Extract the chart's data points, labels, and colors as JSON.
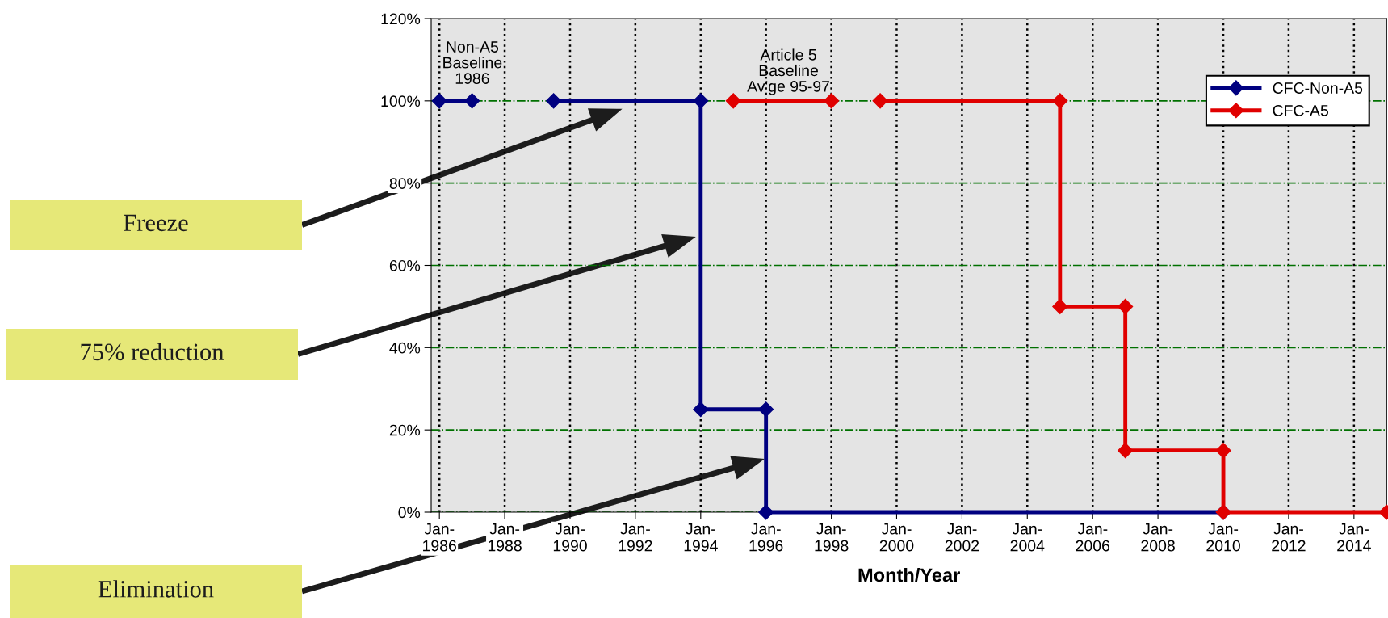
{
  "chart_data": {
    "type": "line",
    "xlabel": "Month/Year",
    "xlim": [
      "1985-10",
      "2015-01"
    ],
    "ylim": [
      0,
      120
    ],
    "xticks": [
      {
        "value": "1986-01",
        "label": "Jan-\n1986"
      },
      {
        "value": "1988-01",
        "label": "Jan-\n1988"
      },
      {
        "value": "1990-01",
        "label": "Jan-\n1990"
      },
      {
        "value": "1992-01",
        "label": "Jan-\n1992"
      },
      {
        "value": "1994-01",
        "label": "Jan-\n1994"
      },
      {
        "value": "1996-01",
        "label": "Jan-\n1996"
      },
      {
        "value": "1998-01",
        "label": "Jan-\n1998"
      },
      {
        "value": "2000-01",
        "label": "Jan-\n2000"
      },
      {
        "value": "2002-01",
        "label": "Jan-\n2002"
      },
      {
        "value": "2004-01",
        "label": "Jan-\n2004"
      },
      {
        "value": "2006-01",
        "label": "Jan-\n2006"
      },
      {
        "value": "2008-01",
        "label": "Jan-\n2008"
      },
      {
        "value": "2010-01",
        "label": "Jan-\n2010"
      },
      {
        "value": "2012-01",
        "label": "Jan-\n2012"
      },
      {
        "value": "2014-01",
        "label": "Jan-\n2014"
      }
    ],
    "yticks": [
      {
        "value": 0,
        "label": "0%"
      },
      {
        "value": 20,
        "label": "20%"
      },
      {
        "value": 40,
        "label": "40%"
      },
      {
        "value": 60,
        "label": "60%"
      },
      {
        "value": 80,
        "label": "80%"
      },
      {
        "value": 100,
        "label": "100%"
      },
      {
        "value": 120,
        "label": "120%"
      }
    ],
    "grid": true,
    "legend": "top right",
    "marker": "diamond",
    "line_style": "solid",
    "series": [
      {
        "name": "CFC-Non-A5",
        "color": "#000080",
        "x": [
          "1986-01",
          "1987-01",
          "1988-01",
          "1989-07",
          "1994-01",
          "1994-01",
          "1996-01",
          "1996-01",
          "2010-01"
        ],
        "values": [
          100,
          100,
          null,
          100,
          100,
          25,
          25,
          0,
          0
        ]
      },
      {
        "name": "CFC-A5",
        "color": "#e00000",
        "x": [
          "1995-01",
          "1998-01",
          "1999-01",
          "1999-07",
          "2005-01",
          "2005-01",
          "2007-01",
          "2007-01",
          "2010-01",
          "2010-01",
          "2015-01"
        ],
        "values": [
          100,
          100,
          null,
          100,
          100,
          50,
          50,
          15,
          15,
          0,
          0
        ]
      }
    ],
    "annotations": [
      "Non-A5\nBaseline\n1986",
      "Article 5\nBaseline\nAv'ge 95-97",
      "Freeze",
      "75% reduction",
      "Elimination"
    ]
  }
}
